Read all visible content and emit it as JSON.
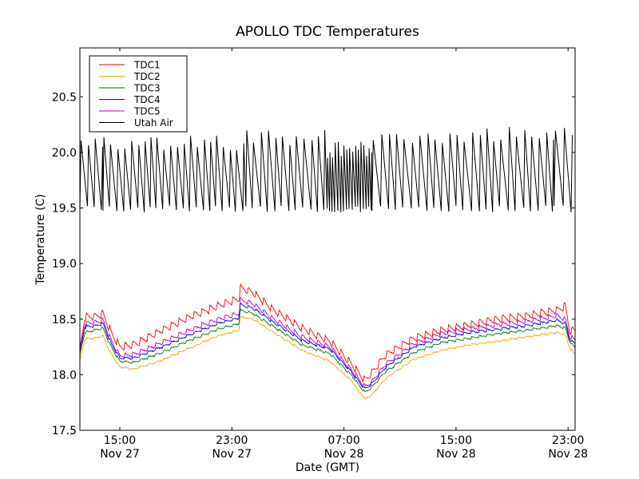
{
  "chart_data": {
    "type": "line",
    "title": "APOLLO TDC Temperatures",
    "xlabel": "Date (GMT)",
    "ylabel": "Temperature (C)",
    "x_units": "hours since Nov 27 12:00 GMT",
    "xlim": [
      0.15,
      35.5
    ],
    "ylim": [
      17.5,
      20.94
    ],
    "grid": false,
    "legend_position": "top-left",
    "yticks": [
      {
        "value": 17.5,
        "label": "17.5"
      },
      {
        "value": 18.0,
        "label": "18.0"
      },
      {
        "value": 18.5,
        "label": "18.5"
      },
      {
        "value": 19.0,
        "label": "19.0"
      },
      {
        "value": 19.5,
        "label": "19.5"
      },
      {
        "value": 20.0,
        "label": "20.0"
      },
      {
        "value": 20.5,
        "label": "20.5"
      }
    ],
    "xticks": [
      {
        "value": 3,
        "label": [
          "15:00",
          "Nov 27"
        ]
      },
      {
        "value": 11,
        "label": [
          "23:00",
          "Nov 27"
        ]
      },
      {
        "value": 19,
        "label": [
          "07:00",
          "Nov 28"
        ]
      },
      {
        "value": 27,
        "label": [
          "15:00",
          "Nov 28"
        ]
      },
      {
        "value": 35,
        "label": [
          "23:00",
          "Nov 28"
        ]
      }
    ],
    "series": [
      {
        "name": "TDC1",
        "color": "#ff0000",
        "ripple": 0.07,
        "ripple_period_h": 0.55,
        "x": [
          0.15,
          0.5,
          1.2,
          1.8,
          2.3,
          3.0,
          4.0,
          6.0,
          8.0,
          10.0,
          11.5,
          11.6,
          12.5,
          14.0,
          16.0,
          18.0,
          19.5,
          20.5,
          21.0,
          22.0,
          24.0,
          26.0,
          28.0,
          30.0,
          32.0,
          34.2,
          34.8,
          35.1,
          35.5
        ],
        "y": [
          18.22,
          18.52,
          18.52,
          18.55,
          18.4,
          18.25,
          18.27,
          18.4,
          18.52,
          18.62,
          18.68,
          18.78,
          18.74,
          18.58,
          18.42,
          18.3,
          18.1,
          17.95,
          18.02,
          18.18,
          18.33,
          18.4,
          18.45,
          18.5,
          18.53,
          18.58,
          18.62,
          18.4,
          18.4
        ]
      },
      {
        "name": "TDC2",
        "color": "#ffa500",
        "ripple": 0.015,
        "ripple_period_h": 0.55,
        "x": [
          0.15,
          0.5,
          1.2,
          1.8,
          2.3,
          3.0,
          4.0,
          6.0,
          8.0,
          10.0,
          11.5,
          11.6,
          12.5,
          14.0,
          16.0,
          18.0,
          19.5,
          20.5,
          21.0,
          22.0,
          24.0,
          26.0,
          28.0,
          30.0,
          32.0,
          34.2,
          34.8,
          35.1,
          35.5
        ],
        "y": [
          18.12,
          18.32,
          18.33,
          18.35,
          18.2,
          18.07,
          18.05,
          18.13,
          18.24,
          18.35,
          18.4,
          18.52,
          18.5,
          18.38,
          18.22,
          18.12,
          17.95,
          17.78,
          17.82,
          17.97,
          18.14,
          18.22,
          18.27,
          18.3,
          18.34,
          18.38,
          18.36,
          18.24,
          18.18
        ]
      },
      {
        "name": "TDC3",
        "color": "#008000",
        "ripple": 0.02,
        "ripple_period_h": 0.55,
        "x": [
          0.15,
          0.5,
          1.2,
          1.8,
          2.3,
          3.0,
          4.0,
          6.0,
          8.0,
          10.0,
          11.5,
          11.6,
          12.5,
          14.0,
          16.0,
          18.0,
          19.5,
          20.5,
          21.0,
          22.0,
          24.0,
          26.0,
          28.0,
          30.0,
          32.0,
          34.2,
          34.8,
          35.1,
          35.5
        ],
        "y": [
          18.18,
          18.38,
          18.4,
          18.42,
          18.27,
          18.12,
          18.11,
          18.2,
          18.31,
          18.41,
          18.46,
          18.58,
          18.55,
          18.43,
          18.27,
          18.19,
          18.0,
          17.84,
          17.89,
          18.03,
          18.2,
          18.29,
          18.33,
          18.37,
          18.4,
          18.44,
          18.42,
          18.3,
          18.24
        ]
      },
      {
        "name": "TDC4",
        "color": "#0000ff",
        "ripple": 0.025,
        "ripple_period_h": 0.55,
        "x": [
          0.15,
          0.5,
          1.2,
          1.8,
          2.3,
          3.0,
          4.0,
          6.0,
          8.0,
          10.0,
          11.5,
          11.6,
          12.5,
          14.0,
          16.0,
          18.0,
          19.5,
          20.5,
          21.0,
          22.0,
          24.0,
          26.0,
          28.0,
          30.0,
          32.0,
          34.2,
          34.8,
          35.1,
          35.5
        ],
        "y": [
          18.2,
          18.43,
          18.44,
          18.46,
          18.3,
          18.15,
          18.15,
          18.25,
          18.36,
          18.46,
          18.51,
          18.63,
          18.6,
          18.47,
          18.31,
          18.23,
          18.03,
          17.87,
          17.92,
          18.07,
          18.25,
          18.33,
          18.38,
          18.41,
          18.44,
          18.49,
          18.46,
          18.32,
          18.28
        ]
      },
      {
        "name": "TDC5",
        "color": "#bf00bf",
        "ripple": 0.045,
        "ripple_period_h": 0.55,
        "x": [
          0.15,
          0.5,
          1.2,
          1.8,
          2.3,
          3.0,
          4.0,
          6.0,
          8.0,
          10.0,
          11.5,
          11.6,
          12.5,
          14.0,
          16.0,
          18.0,
          19.5,
          20.5,
          21.0,
          22.0,
          24.0,
          26.0,
          28.0,
          30.0,
          32.0,
          34.2,
          34.8,
          35.1,
          35.5
        ],
        "y": [
          18.22,
          18.46,
          18.47,
          18.49,
          18.33,
          18.17,
          18.18,
          18.29,
          18.4,
          18.5,
          18.55,
          18.67,
          18.64,
          18.5,
          18.34,
          18.25,
          18.05,
          17.89,
          17.94,
          18.1,
          18.28,
          18.37,
          18.41,
          18.45,
          18.48,
          18.53,
          18.5,
          18.35,
          18.3
        ]
      },
      {
        "name": "Utah Air",
        "color": "#000000",
        "kind": "sawtooth",
        "min": 19.5,
        "max": 20.12,
        "period_h_default": 0.5,
        "segments": [
          {
            "from": 0.15,
            "to": 1.8,
            "period_h": 0.55,
            "max": 20.15
          },
          {
            "from": 1.8,
            "to": 12.0,
            "period_h": 0.47,
            "max": 20.12
          },
          {
            "from": 12.0,
            "to": 17.8,
            "period_h": 0.52,
            "max": 20.15
          },
          {
            "from": 17.8,
            "to": 21.0,
            "period_h": 0.2,
            "max": 20.05
          },
          {
            "from": 21.0,
            "to": 34.0,
            "period_h": 0.55,
            "max": 20.18
          },
          {
            "from": 34.0,
            "to": 35.5,
            "period_h": 0.6,
            "max": 20.2
          }
        ]
      }
    ]
  }
}
